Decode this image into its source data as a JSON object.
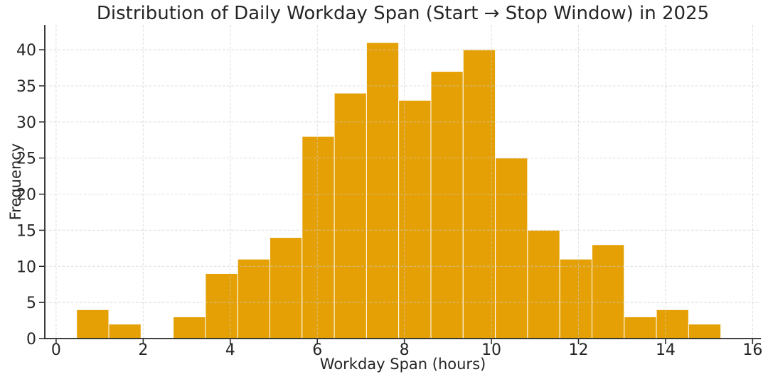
{
  "chart_data": {
    "type": "bar",
    "subtype": "histogram",
    "title": "Distribution of Daily Workday Span (Start → Stop Window) in 2025",
    "xlabel": "Workday Span (hours)",
    "ylabel": "Frequency",
    "bin_start": 0.47,
    "bin_width": 0.74,
    "bin_edges": [
      0.47,
      1.21,
      1.95,
      2.69,
      3.43,
      4.17,
      4.91,
      5.65,
      6.39,
      7.13,
      7.87,
      8.61,
      9.35,
      10.09,
      10.83,
      11.57,
      12.31,
      13.05,
      13.79,
      14.53,
      15.27
    ],
    "counts": [
      4,
      2,
      0,
      3,
      9,
      11,
      14,
      28,
      34,
      41,
      33,
      37,
      40,
      25,
      15,
      11,
      13,
      3,
      4,
      2
    ],
    "x_ticks": [
      0,
      2,
      4,
      6,
      8,
      10,
      12,
      14,
      16
    ],
    "y_ticks": [
      0,
      5,
      10,
      15,
      20,
      25,
      30,
      35,
      40
    ],
    "xlim": [
      -0.26,
      16.19
    ],
    "ylim": [
      0,
      43.45
    ],
    "grid": true,
    "grid_style": "dashed",
    "legend": null,
    "colors": {
      "bar_fill": "#E4A004",
      "bar_edge": "#FFFFFF",
      "grid": "#CCCCCC",
      "axis": "#262626",
      "text": "#262626",
      "background": "#FFFFFF"
    }
  }
}
